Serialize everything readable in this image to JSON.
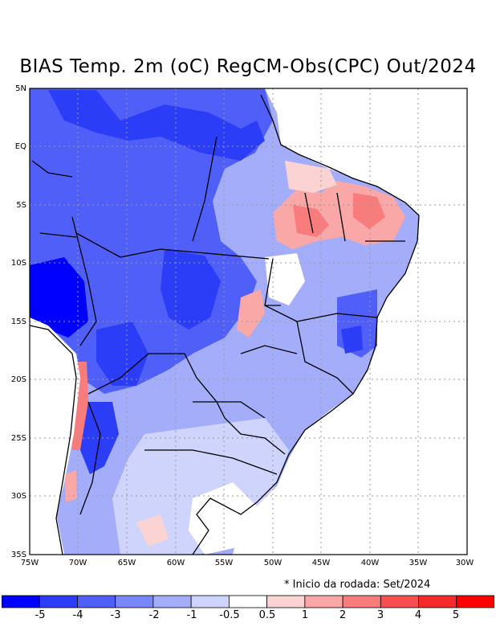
{
  "title": "BIAS Temp. 2m (oC) RegCM-Obs(CPC) Out/2024",
  "note": "* Inicio da rodada: Set/2024",
  "axes": {
    "lat_labels": [
      "5N",
      "EQ",
      "5S",
      "10S",
      "15S",
      "20S",
      "25S",
      "30S",
      "35S"
    ],
    "lon_labels": [
      "75W",
      "70W",
      "65W",
      "60W",
      "55W",
      "50W",
      "45W",
      "40W",
      "35W",
      "30W"
    ]
  },
  "colorbar": {
    "labels": [
      "-5",
      "-4",
      "-3",
      "-2",
      "-1",
      "-0.5",
      "0.5",
      "1",
      "2",
      "3",
      "4",
      "5"
    ],
    "colors": [
      "#0000ff",
      "#2b3df7",
      "#4f5ff8",
      "#7888f9",
      "#a3adfa",
      "#cfd4fc",
      "#ffffff",
      "#fcd3d3",
      "#f9a7a7",
      "#f87c7c",
      "#f64f4f",
      "#f52a2a",
      "#ff0000"
    ]
  }
}
